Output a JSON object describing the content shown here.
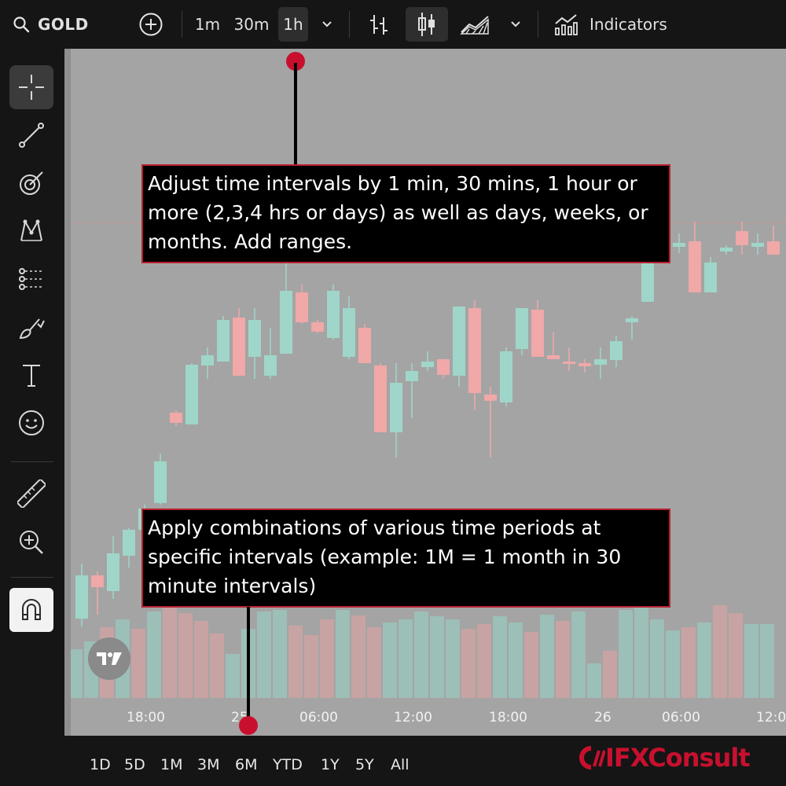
{
  "toolbar": {
    "symbol": "GOLD",
    "intervals": [
      "1m",
      "30m",
      "1h"
    ],
    "active_interval": "1h",
    "indicators_label": "Indicators",
    "icons": [
      "search-icon",
      "add-symbol-icon",
      "chevron-down-icon",
      "bar-chart-icon",
      "candles-icon",
      "area-chart-icon",
      "indicators-icon"
    ]
  },
  "tools": [
    "crosshair-icon",
    "trend-line-icon",
    "gann-fib-icon",
    "pattern-icon",
    "prediction-icon",
    "brush-icon",
    "text-icon",
    "emoji-icon",
    "ruler-icon",
    "zoom-in-icon",
    "magnet-icon"
  ],
  "time_axis": {
    "ticks": [
      "18:00",
      "25",
      "06:00",
      "12:00",
      "18:00",
      "26",
      "06:00",
      "12:0"
    ]
  },
  "ranges": [
    "1D",
    "5D",
    "1M",
    "3M",
    "6M",
    "YTD",
    "1Y",
    "5Y",
    "All"
  ],
  "annotations": {
    "top": "Adjust time intervals by 1 min, 30 mins, 1 hour or more (2,3,4 hrs or days) as well as days, weeks, or months. Add ranges.",
    "bottom": "Apply combinations of various time periods at specific intervals (example: 1M = 1 month in 30 minute intervals)"
  },
  "brand": "IFXConsult",
  "colors": {
    "up": "#9fd6c9",
    "down": "#f0a8a8",
    "accent": "#c8102e",
    "panel": "#151515",
    "chart_bg": "#a4a4a4"
  }
}
